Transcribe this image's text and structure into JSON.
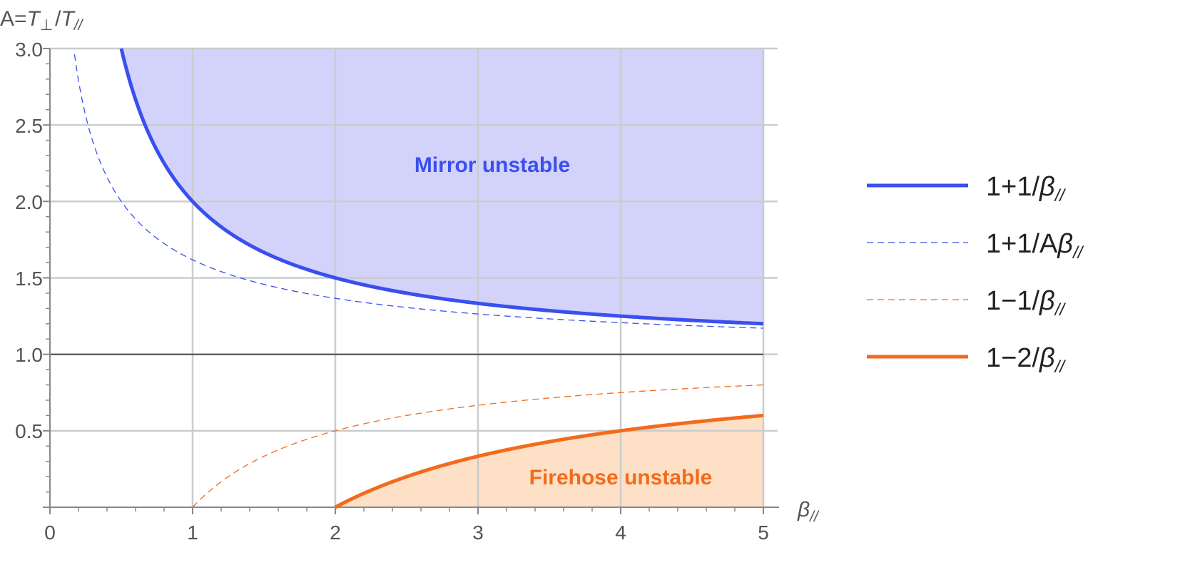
{
  "chart_data": {
    "type": "line",
    "x_axis": {
      "label_main": "β",
      "label_sub": "//",
      "range": [
        0,
        5
      ],
      "ticks": [
        "0",
        "1",
        "2",
        "3",
        "4",
        "5"
      ]
    },
    "y_axis": {
      "label_prefix": "A=",
      "label_t1": "T",
      "label_t1_sub": "⊥",
      "label_slash": "/",
      "label_t2": "T",
      "label_t2_sub": "//",
      "range": [
        0,
        3
      ],
      "ticks": [
        "0.5",
        "1.0",
        "1.5",
        "2.0",
        "2.5",
        "3.0"
      ]
    },
    "grid": true,
    "legend_position": "right",
    "reference_line_y": 1.0,
    "colors": {
      "blue": "#3a4ff0",
      "orange": "#f26b1d",
      "blue_fill": "#d3d2fb",
      "orange_fill": "#fde0c6",
      "grid": "#c8cdcd",
      "axis": "#888888",
      "ref_line": "#444444"
    },
    "series": [
      {
        "name_main": "1+1/",
        "name_greek": "β",
        "name_sub": "//",
        "formula": "1+1/beta",
        "style": "solid",
        "color": "blue",
        "x": [
          0.5,
          0.75,
          1.0,
          1.5,
          2.0,
          3.0,
          4.0,
          5.0
        ],
        "y": [
          3.0,
          2.333,
          2.0,
          1.667,
          1.5,
          1.333,
          1.25,
          1.2
        ]
      },
      {
        "name_main": "1+1/A",
        "name_greek": "β",
        "name_sub": "//",
        "formula": "(1+sqrt(1+4/beta))/2",
        "style": "dashed",
        "color": "blue",
        "x": [
          0.167,
          0.25,
          0.5,
          1.0,
          2.0,
          3.0,
          4.0,
          5.0
        ],
        "y": [
          3.0,
          2.56,
          2.0,
          1.618,
          1.366,
          1.264,
          1.207,
          1.171
        ]
      },
      {
        "name_main": "1−1/",
        "name_greek": "β",
        "name_sub": "//",
        "formula": "1-1/beta",
        "style": "dashed",
        "color": "orange",
        "x": [
          1.0,
          1.5,
          2.0,
          3.0,
          4.0,
          5.0
        ],
        "y": [
          0.0,
          0.333,
          0.5,
          0.667,
          0.75,
          0.8
        ]
      },
      {
        "name_main": "1−2/",
        "name_greek": "β",
        "name_sub": "//",
        "formula": "1-2/beta",
        "style": "solid",
        "color": "orange",
        "x": [
          2.0,
          2.5,
          3.0,
          4.0,
          5.0
        ],
        "y": [
          0.0,
          0.2,
          0.333,
          0.5,
          0.6
        ]
      }
    ],
    "regions": [
      {
        "label": "Mirror unstable",
        "color": "blue",
        "bounded_by": "1+1/beta",
        "side": "above"
      },
      {
        "label": "Firehose unstable",
        "color": "orange",
        "bounded_by": "1-2/beta",
        "side": "below"
      }
    ]
  }
}
